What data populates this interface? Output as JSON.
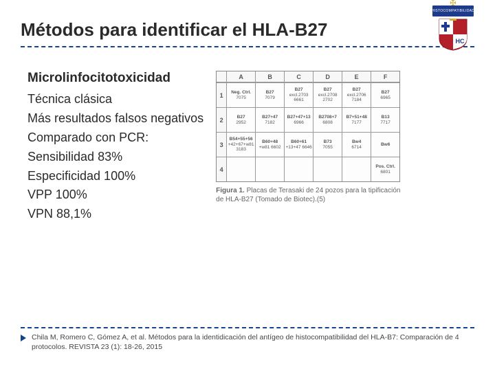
{
  "title": "Métodos para identificar el HLA-B27",
  "subtitle": "Microlinfocitotoxicidad",
  "bullets": [
    "Técnica clásica",
    "Más resultados falsos negativos",
    "Comparado con PCR:",
    "Sensibilidad 83%",
    "Especificidad 100%",
    "VPP 100%",
    "VPN  88,1%"
  ],
  "plate": {
    "cols": [
      "A",
      "B",
      "C",
      "D",
      "E",
      "F"
    ],
    "rows": [
      "1",
      "2",
      "3",
      "4"
    ],
    "cells": [
      [
        {
          "t": "Neg. Ctrl.",
          "b": "7075"
        },
        {
          "t": "B27",
          "b": "7079"
        },
        {
          "t": "B27",
          "b": "excl.2703 6661"
        },
        {
          "t": "B27",
          "b": "excl.2708 2702"
        },
        {
          "t": "B27",
          "b": "excl.2706 7184"
        },
        {
          "t": "B27",
          "b": "6965"
        }
      ],
      [
        {
          "t": "B27",
          "b": "2952"
        },
        {
          "t": "B27+47",
          "b": "7182"
        },
        {
          "t": "B27+47+13",
          "b": "6966"
        },
        {
          "t": "B2708+7",
          "b": "6808"
        },
        {
          "t": "B7+51+48",
          "b": "7177"
        },
        {
          "t": "B13",
          "b": "7717"
        }
      ],
      [
        {
          "t": "B54+55+56",
          "b": "+42+67+w81 3183"
        },
        {
          "t": "B60+48",
          "b": "+w81 6602"
        },
        {
          "t": "B60+61",
          "b": "+13+47 6646"
        },
        {
          "t": "B73",
          "b": "7055"
        },
        {
          "t": "Bw4",
          "b": "6714"
        },
        {
          "t": "Bw6",
          "b": ""
        }
      ],
      [
        {
          "t": "",
          "b": ""
        },
        {
          "t": "",
          "b": ""
        },
        {
          "t": "",
          "b": ""
        },
        {
          "t": "",
          "b": ""
        },
        {
          "t": "",
          "b": ""
        },
        {
          "t": "Pos. Ctrl.",
          "b": "6801"
        }
      ]
    ],
    "caption_label": "Figura 1.",
    "caption_text": "Placas de Terasaki de 24 pozos para la tipificación de HLA-B27 (Tomado de Biotec).(5)"
  },
  "logo_banner": "HISTOCOMPATIBILIDAD",
  "citation": "Chila M, Romero C, Gómez A, et al. Métodos para la identidicación del antígeo de histocompatibilidad del HLA-B7: Comparación de 4 protocolos. REVISTA 23 (1): 18-26, 2015",
  "colors": {
    "accent": "#14428c",
    "logo_red": "#b3202a",
    "logo_blue": "#1e3a8a",
    "logo_gold": "#d4af37"
  }
}
